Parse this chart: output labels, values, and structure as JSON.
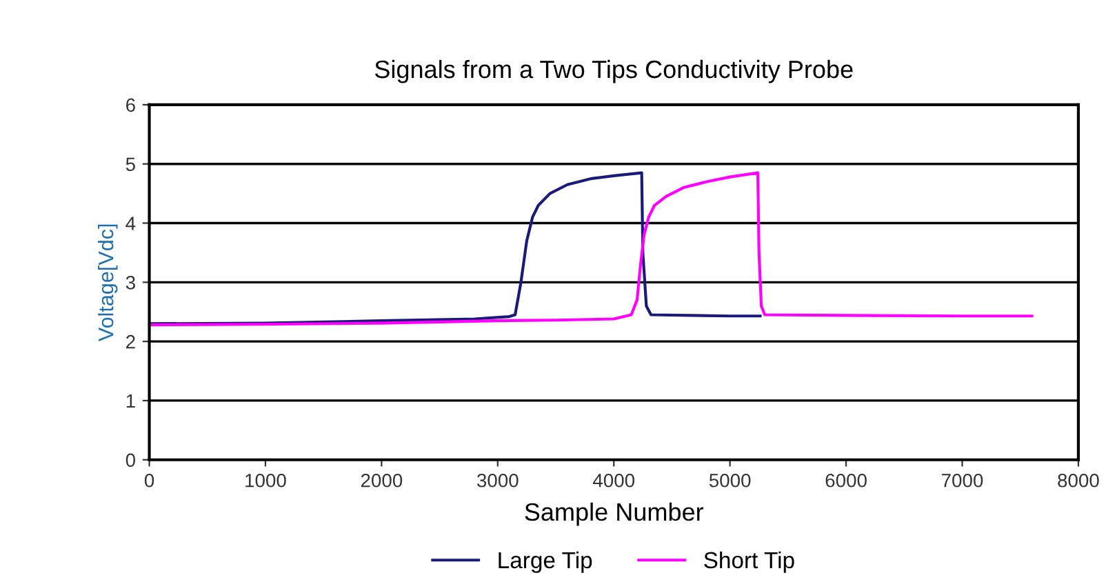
{
  "chart_data": {
    "type": "line",
    "title": "Signals from a Two Tips Conductivity Probe",
    "xlabel": "Sample Number",
    "ylabel": "Voltage[Vdc]",
    "xlim": [
      0,
      8000
    ],
    "xticks": [
      0,
      1000,
      2000,
      3000,
      4000,
      5000,
      6000,
      7000,
      8000
    ],
    "ylim": [
      0,
      6
    ],
    "yticks": [
      0,
      1,
      2,
      3,
      4,
      5,
      6
    ],
    "grid": "y",
    "legend": "bottom",
    "marker": "none",
    "line_style": "solid",
    "series": [
      {
        "name": "Large Tip",
        "color": "#1a1a7a",
        "x": [
          0,
          1000,
          2000,
          2800,
          3100,
          3150,
          3200,
          3250,
          3300,
          3350,
          3450,
          3600,
          3800,
          4000,
          4240,
          4250,
          4280,
          4320,
          5000,
          5260
        ],
        "values": [
          2.3,
          2.31,
          2.35,
          2.38,
          2.42,
          2.45,
          3.0,
          3.7,
          4.1,
          4.3,
          4.5,
          4.65,
          4.75,
          4.8,
          4.85,
          3.5,
          2.6,
          2.45,
          2.43,
          2.43
        ]
      },
      {
        "name": "Short Tip",
        "color": "#ff00ff",
        "x": [
          0,
          1000,
          2000,
          3000,
          3500,
          4000,
          4150,
          4200,
          4230,
          4260,
          4300,
          4350,
          4450,
          4600,
          4800,
          5000,
          5240,
          5250,
          5270,
          5300,
          6000,
          7000,
          7600
        ],
        "values": [
          2.28,
          2.29,
          2.31,
          2.35,
          2.36,
          2.38,
          2.45,
          2.7,
          3.3,
          3.8,
          4.1,
          4.3,
          4.45,
          4.6,
          4.7,
          4.78,
          4.85,
          3.5,
          2.6,
          2.45,
          2.44,
          2.43,
          2.43
        ]
      }
    ]
  }
}
